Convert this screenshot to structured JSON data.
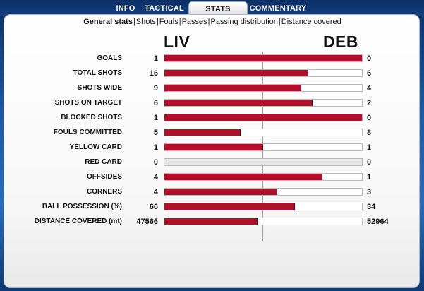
{
  "tabs": [
    "INFO",
    "TACTICAL",
    "STATS",
    "COMMENTARY"
  ],
  "active_tab": "STATS",
  "subnav": {
    "items": [
      "General stats",
      "Shots",
      "Fouls",
      "Passes",
      "Passing distribution",
      "Distance covered"
    ],
    "separator": "|",
    "active": "General stats"
  },
  "teams": {
    "home": "LIV",
    "away": "DEB"
  },
  "colors": {
    "home_bar": "#b0102a",
    "away_bar": "#ffffff",
    "empty_bar": "#e6e6e6"
  },
  "stats": [
    {
      "label": "GOALS",
      "home": "1",
      "away": "0",
      "home_share": 1.0
    },
    {
      "label": "TOTAL SHOTS",
      "home": "16",
      "away": "6",
      "home_share": 0.727
    },
    {
      "label": "SHOTS WIDE",
      "home": "9",
      "away": "4",
      "home_share": 0.692
    },
    {
      "label": "SHOTS ON TARGET",
      "home": "6",
      "away": "2",
      "home_share": 0.75
    },
    {
      "label": "BLOCKED SHOTS",
      "home": "1",
      "away": "0",
      "home_share": 1.0
    },
    {
      "label": "FOULS COMMITTED",
      "home": "5",
      "away": "8",
      "home_share": 0.385
    },
    {
      "label": "YELLOW CARD",
      "home": "1",
      "away": "1",
      "home_share": 0.5
    },
    {
      "label": "RED CARD",
      "home": "0",
      "away": "0",
      "home_share": null
    },
    {
      "label": "OFFSIDES",
      "home": "4",
      "away": "1",
      "home_share": 0.8
    },
    {
      "label": "CORNERS",
      "home": "4",
      "away": "3",
      "home_share": 0.571
    },
    {
      "label": "BALL POSSESSION (%)",
      "home": "66",
      "away": "34",
      "home_share": 0.66
    },
    {
      "label": "DISTANCE COVERED (mt)",
      "home": "47566",
      "away": "52964",
      "home_share": 0.473
    }
  ]
}
